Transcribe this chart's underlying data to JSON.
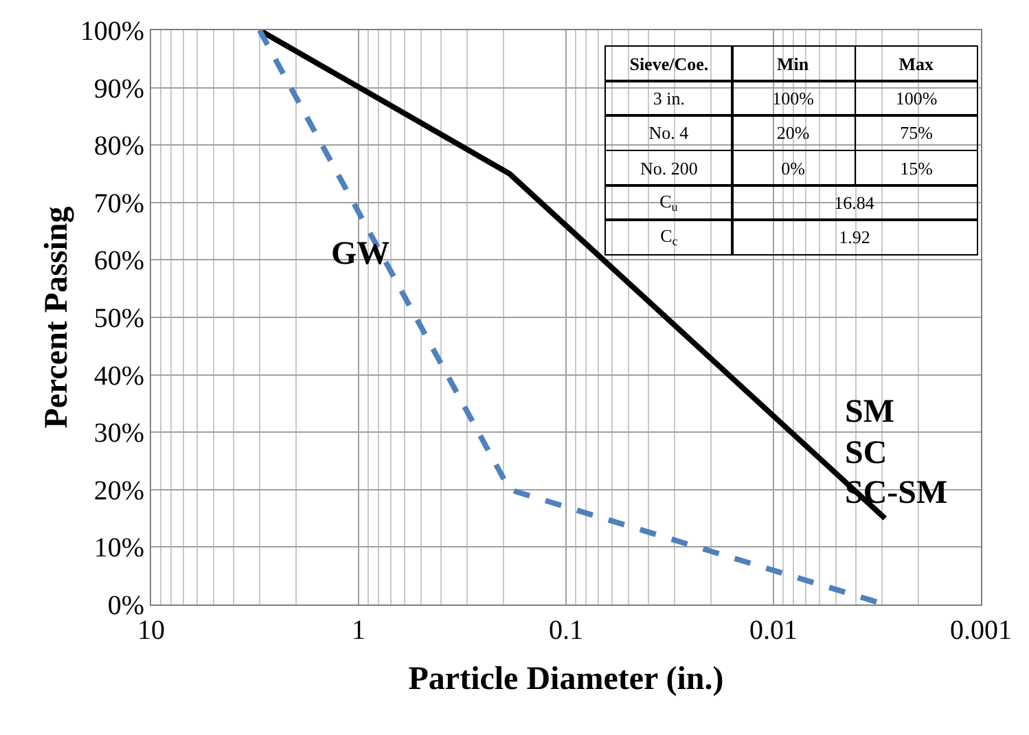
{
  "chart_data": {
    "type": "line",
    "xlabel": "Particle Diameter (in.)",
    "ylabel": "Percent Passing",
    "log": "x",
    "xlim": [
      10,
      0.001
    ],
    "xticks": [
      10,
      1,
      0.1,
      0.01,
      0.001
    ],
    "ylim": [
      0,
      100
    ],
    "yticks": [
      {
        "value": 0,
        "label": "0%"
      },
      {
        "value": 10,
        "label": "10%"
      },
      {
        "value": 20,
        "label": "20%"
      },
      {
        "value": 30,
        "label": "30%"
      },
      {
        "value": 40,
        "label": "40%"
      },
      {
        "value": 50,
        "label": "50%"
      },
      {
        "value": 60,
        "label": "60%"
      },
      {
        "value": 70,
        "label": "70%"
      },
      {
        "value": 80,
        "label": "80%"
      },
      {
        "value": 90,
        "label": "90%"
      },
      {
        "value": 100,
        "label": "100%"
      }
    ],
    "grid": true,
    "series": [
      {
        "color": "#000000",
        "line_style": "solid",
        "x": [
          3,
          0.187,
          0.0029
        ],
        "values": [
          100,
          75,
          15
        ]
      },
      {
        "color": "#4f81bd",
        "line_style": "dashed",
        "x": [
          3,
          0.187,
          0.0029
        ],
        "values": [
          100,
          20,
          0
        ]
      }
    ],
    "annotations": [
      "Sieve/Coe.",
      "Min",
      "Max",
      "3 in.",
      "100%",
      "100%",
      "No. 4",
      "20%",
      "75%",
      "No. 200",
      "0%",
      "15%",
      "C$_{u}$",
      "16.84",
      "C$_{c}$",
      "1.92",
      "GW",
      "SM",
      "SC",
      "SC-SM"
    ]
  }
}
